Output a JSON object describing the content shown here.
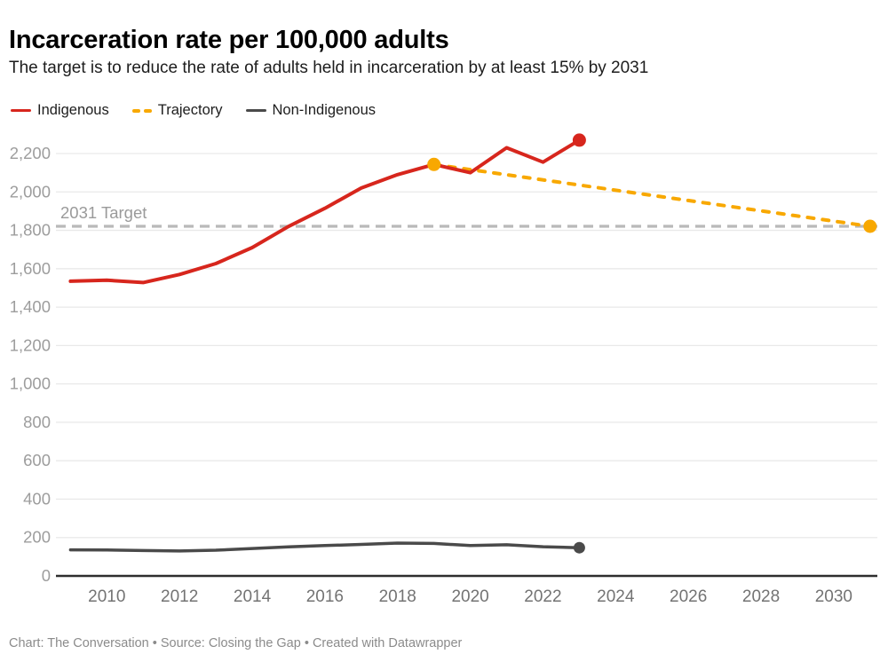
{
  "header": {
    "title": "Incarceration rate per 100,000 adults",
    "subtitle": "The target is to reduce the rate of adults held in incarceration by at least 15% by 2031"
  },
  "legend": [
    {
      "label": "Indigenous",
      "color": "#d7261d",
      "style": "solid"
    },
    {
      "label": "Trajectory",
      "color": "#f8a800",
      "style": "dashed"
    },
    {
      "label": "Non-Indigenous",
      "color": "#4a4a4a",
      "style": "solid"
    }
  ],
  "chart_data": {
    "type": "line",
    "title": "Incarceration rate per 100,000 adults",
    "xlabel": "",
    "ylabel": "",
    "grid": "horizontal",
    "legend_position": "top-left",
    "xlim": [
      2008.6,
      2031.2
    ],
    "ylim": [
      0,
      2300
    ],
    "x_ticks": [
      2010,
      2012,
      2014,
      2016,
      2018,
      2020,
      2022,
      2024,
      2026,
      2028,
      2030
    ],
    "y_ticks": [
      0,
      200,
      400,
      600,
      800,
      1000,
      1200,
      1400,
      1600,
      1800,
      2000,
      2200
    ],
    "series": [
      {
        "name": "Trajectory",
        "color": "#f8a800",
        "dashed": true,
        "x": [
          2019,
          2031
        ],
        "values": [
          2143,
          1821
        ],
        "dots": [
          2019,
          2031
        ]
      },
      {
        "name": "Indigenous",
        "color": "#d7261d",
        "dashed": false,
        "x": [
          2009,
          2010,
          2011,
          2012,
          2013,
          2014,
          2015,
          2016,
          2017,
          2018,
          2019,
          2020,
          2021,
          2022,
          2023
        ],
        "values": [
          1535,
          1540,
          1528,
          1570,
          1627,
          1710,
          1820,
          1915,
          2020,
          2090,
          2143,
          2100,
          2230,
          2155,
          2270
        ],
        "dots": [
          2023
        ]
      },
      {
        "name": "Non-Indigenous",
        "color": "#4a4a4a",
        "dashed": false,
        "x": [
          2009,
          2010,
          2011,
          2012,
          2013,
          2014,
          2015,
          2016,
          2017,
          2018,
          2019,
          2020,
          2021,
          2022,
          2023
        ],
        "values": [
          136,
          135,
          132,
          130,
          134,
          143,
          151,
          158,
          164,
          171,
          169,
          158,
          162,
          152,
          147
        ],
        "dots": [
          2023
        ]
      }
    ],
    "target_line": {
      "label": "2031 Target",
      "value": 1821,
      "color": "#b9b9b9"
    },
    "colors": {
      "gridline": "#e9e9e9",
      "zero_axis": "#2e2e2e",
      "y_tick_label": "#9d9d9d",
      "x_tick_label": "#737373",
      "target_label": "#9a9a9a"
    }
  },
  "footer": {
    "text": "Chart: The Conversation • Source: Closing the Gap • Created with Datawrapper"
  }
}
